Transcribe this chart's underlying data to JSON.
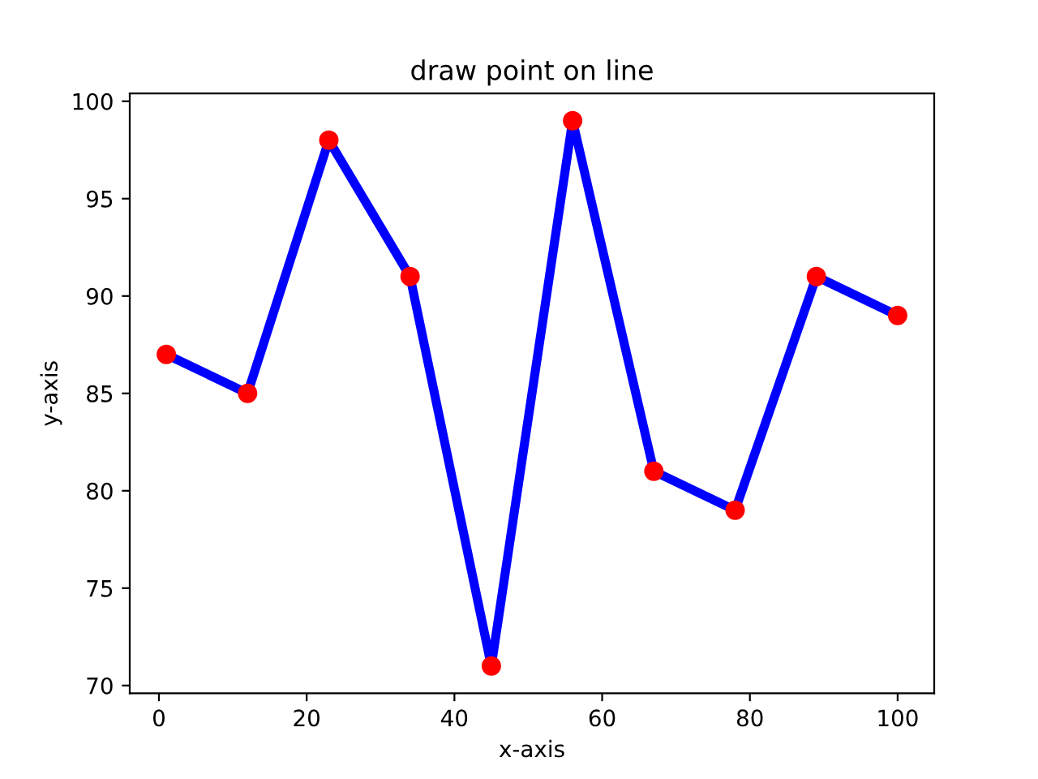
{
  "chart_data": {
    "type": "line",
    "title": "draw point on line",
    "xlabel": "x-axis",
    "ylabel": "y-axis",
    "x": [
      1,
      12,
      23,
      34,
      45,
      56,
      67,
      78,
      89,
      100
    ],
    "series": [
      {
        "color": "#0000ff",
        "marker": "none",
        "line_style": "solid",
        "values": [
          87,
          85,
          98,
          91,
          71,
          99,
          81,
          79,
          91,
          89
        ]
      },
      {
        "type": "scatter",
        "color": "#ff0000",
        "marker": "circle",
        "values": [
          87,
          85,
          98,
          91,
          71,
          99,
          81,
          79,
          91,
          89
        ]
      }
    ],
    "xlim": [
      -3.95,
      104.95
    ],
    "ylim": [
      69.6,
      100.4
    ],
    "xticks": [
      0,
      20,
      40,
      60,
      80,
      100
    ],
    "yticks": [
      70,
      75,
      80,
      85,
      90,
      95,
      100
    ],
    "grid": false,
    "legend": false
  }
}
